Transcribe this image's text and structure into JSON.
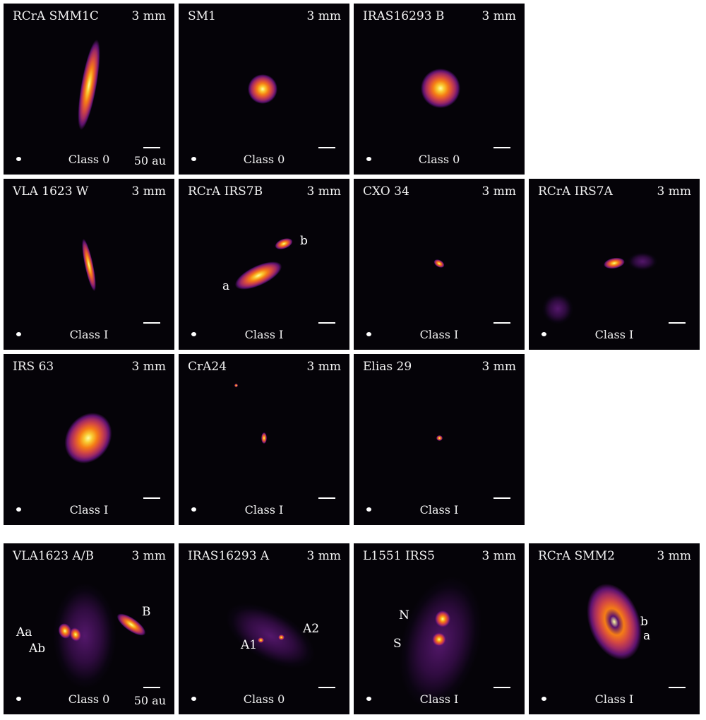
{
  "colormap": [
    "#fcffa4",
    "#f9c932",
    "#f57d15",
    "#d44842",
    "#9f2a63",
    "#5b126e",
    "#250b4a",
    "#050308"
  ],
  "panels": [
    {
      "name": "RCrA SMM1C",
      "band": "3 mm",
      "class": "Class 0",
      "scale_label": "50 au",
      "labels": []
    },
    {
      "name": "SM1",
      "band": "3 mm",
      "class": "Class 0",
      "labels": []
    },
    {
      "name": "IRAS16293 B",
      "band": "3 mm",
      "class": "Class 0",
      "labels": []
    },
    {
      "name": "VLA 1623 W",
      "band": "3 mm",
      "class": "Class I",
      "labels": []
    },
    {
      "name": "RCrA IRS7B",
      "band": "3 mm",
      "class": "Class I",
      "labels": [
        "a",
        "b"
      ]
    },
    {
      "name": "CXO 34",
      "band": "3 mm",
      "class": "Class I",
      "labels": []
    },
    {
      "name": "RCrA IRS7A",
      "band": "3 mm",
      "class": "Class I",
      "labels": []
    },
    {
      "name": "IRS 63",
      "band": "3 mm",
      "class": "Class I",
      "labels": []
    },
    {
      "name": "CrA24",
      "band": "3 mm",
      "class": "Class I",
      "labels": []
    },
    {
      "name": "Elias 29",
      "band": "3 mm",
      "class": "Class I",
      "labels": []
    },
    {
      "name": "VLA1623 A/B",
      "band": "3 mm",
      "class": "Class 0",
      "scale_label": "50 au",
      "labels": [
        "Aa",
        "Ab",
        "B"
      ]
    },
    {
      "name": "IRAS16293 A",
      "band": "3 mm",
      "class": "Class 0",
      "labels": [
        "A1",
        "A2"
      ]
    },
    {
      "name": "L1551 IRS5",
      "band": "3 mm",
      "class": "Class I",
      "labels": [
        "N",
        "S"
      ]
    },
    {
      "name": "RCrA SMM2",
      "band": "3 mm",
      "class": "Class I",
      "labels": [
        "b",
        "a"
      ]
    }
  ]
}
